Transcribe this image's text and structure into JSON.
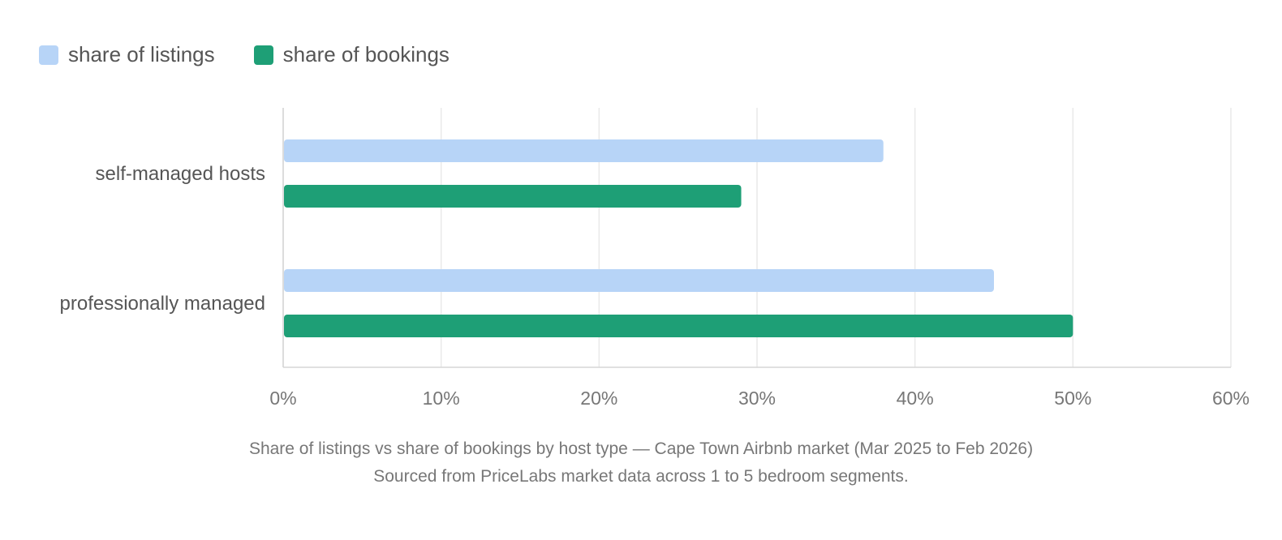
{
  "legend": {
    "items": [
      {
        "label": "share of listings",
        "color": "#b7d4f7"
      },
      {
        "label": "share of bookings",
        "color": "#1e9f76"
      }
    ]
  },
  "caption": {
    "line1": "Share of listings vs share of bookings by host type — Cape Town Airbnb market (Mar 2025 to Feb 2026)",
    "line2": "Sourced from PriceLabs market data across 1 to 5 bedroom segments."
  },
  "chart_data": {
    "type": "bar",
    "orientation": "horizontal",
    "categories": [
      "self-managed hosts",
      "professionally managed"
    ],
    "series": [
      {
        "name": "share of listings",
        "values": [
          38,
          45
        ],
        "color": "#b7d4f7"
      },
      {
        "name": "share of bookings",
        "values": [
          29,
          50
        ],
        "color": "#1e9f76"
      }
    ],
    "xlim": [
      0,
      60
    ],
    "xticks": [
      0,
      10,
      20,
      30,
      40,
      50,
      60
    ],
    "xtick_labels": [
      "0%",
      "10%",
      "20%",
      "30%",
      "40%",
      "50%",
      "60%"
    ],
    "grid": true,
    "legend_position": "top-left"
  }
}
